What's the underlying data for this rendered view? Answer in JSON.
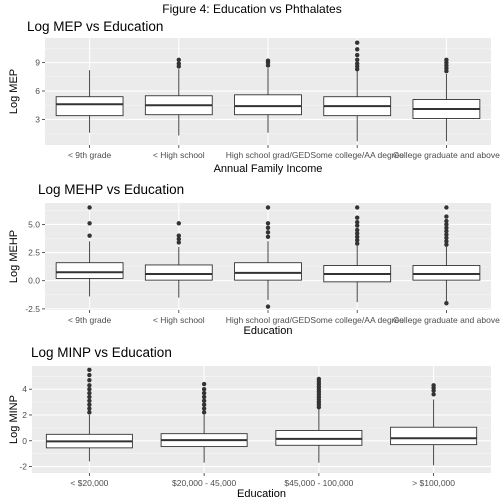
{
  "figure_title": "Figure 4: Education vs Phthalates",
  "chart_data": [
    {
      "type": "box",
      "title": "Log MEP vs Education",
      "xlabel": "Annual Family Income",
      "ylabel": "Log MEP",
      "ylim": [
        0.3,
        11.6
      ],
      "yticks": [
        3,
        6,
        9
      ],
      "ytick_labels": [
        "3",
        "6",
        "9"
      ],
      "grid": true,
      "categories": [
        "< 9th grade",
        "< High school",
        "High school grad/GED",
        "Some college/AA degree",
        "College graduate and above"
      ],
      "boxes": [
        {
          "whisker_low": 1.6,
          "q1": 3.4,
          "median": 4.6,
          "q3": 5.4,
          "whisker_high": 8.2,
          "outliers": []
        },
        {
          "whisker_low": 1.3,
          "q1": 3.5,
          "median": 4.5,
          "q3": 5.5,
          "whisker_high": 8.3,
          "outliers": [
            8.6,
            8.9,
            9.3
          ]
        },
        {
          "whisker_low": 1.6,
          "q1": 3.5,
          "median": 4.4,
          "q3": 5.6,
          "whisker_high": 8.4,
          "outliers": [
            8.7,
            9.0,
            9.2
          ]
        },
        {
          "whisker_low": 0.7,
          "q1": 3.4,
          "median": 4.4,
          "q3": 5.4,
          "whisker_high": 8.1,
          "outliers": [
            8.3,
            8.6,
            8.9,
            9.3,
            9.8,
            10.4,
            11.1
          ]
        },
        {
          "whisker_low": 0.7,
          "q1": 3.1,
          "median": 4.1,
          "q3": 5.1,
          "whisker_high": 7.8,
          "outliers": [
            8.1,
            8.4,
            8.7,
            9.0,
            9.3
          ]
        }
      ]
    },
    {
      "type": "box",
      "title": "Log MEHP vs Education",
      "xlabel": "Education",
      "ylabel": "Log MEHP",
      "ylim": [
        -2.6,
        6.9
      ],
      "yticks": [
        -2.5,
        0,
        2.5,
        5
      ],
      "ytick_labels": [
        "-2.5",
        "0.0",
        "2.5",
        "5.0"
      ],
      "grid": true,
      "categories": [
        "< 9th grade",
        "< High school",
        "High school grad/GED",
        "Some college/AA degree",
        "College graduate and above"
      ],
      "boxes": [
        {
          "whisker_low": -1.4,
          "q1": 0.2,
          "median": 0.75,
          "q3": 1.6,
          "whisker_high": 3.5,
          "outliers": [
            4.0,
            5.1,
            6.5
          ]
        },
        {
          "whisker_low": -1.5,
          "q1": 0.05,
          "median": 0.6,
          "q3": 1.4,
          "whisker_high": 3.0,
          "outliers": [
            3.4,
            3.7,
            4.0,
            5.1
          ]
        },
        {
          "whisker_low": -1.7,
          "q1": 0.05,
          "median": 0.7,
          "q3": 1.6,
          "whisker_high": 3.5,
          "outliers": [
            -2.3,
            3.9,
            4.3,
            4.7,
            5.1,
            6.5
          ]
        },
        {
          "whisker_low": -1.9,
          "q1": -0.1,
          "median": 0.6,
          "q3": 1.35,
          "whisker_high": 3.1,
          "outliers": [
            3.3,
            3.6,
            3.9,
            4.2,
            4.5,
            4.9,
            5.2,
            5.6,
            6.5
          ]
        },
        {
          "whisker_low": -1.8,
          "q1": 0.05,
          "median": 0.6,
          "q3": 1.35,
          "whisker_high": 3.0,
          "outliers": [
            -2.0,
            3.2,
            3.5,
            3.8,
            4.1,
            4.4,
            4.7,
            5.0,
            5.3,
            5.7,
            6.5
          ]
        }
      ]
    },
    {
      "type": "box",
      "title": "Log MINP vs Education",
      "xlabel": "Education",
      "ylabel": "Log MINP",
      "ylim": [
        -2.5,
        5.8
      ],
      "yticks": [
        -2,
        0,
        2,
        4
      ],
      "ytick_labels": [
        "-2",
        "0",
        "2",
        "4"
      ],
      "grid": true,
      "categories": [
        "< $20,000",
        "$20,000 - 45,000",
        "$45,000 - 100,000",
        "> $100,000"
      ],
      "boxes": [
        {
          "whisker_low": -1.6,
          "q1": -0.55,
          "median": -0.05,
          "q3": 0.5,
          "whisker_high": 2.0,
          "outliers": [
            2.2,
            2.5,
            2.8,
            3.1,
            3.4,
            3.7,
            4.0,
            4.3,
            4.7,
            5.1,
            5.5
          ]
        },
        {
          "whisker_low": -1.7,
          "q1": -0.45,
          "median": 0.05,
          "q3": 0.55,
          "whisker_high": 2.0,
          "outliers": [
            2.2,
            2.5,
            2.8,
            3.1,
            3.4,
            3.7,
            4.0,
            4.4
          ]
        },
        {
          "whisker_low": -1.7,
          "q1": -0.35,
          "median": 0.15,
          "q3": 0.8,
          "whisker_high": 2.5,
          "outliers": [
            2.6,
            2.8,
            3.0,
            3.2,
            3.4,
            3.6,
            3.8,
            4.0,
            4.2,
            4.4,
            4.6,
            4.8
          ]
        },
        {
          "whisker_low": -1.9,
          "q1": -0.3,
          "median": 0.2,
          "q3": 1.05,
          "whisker_high": 3.2,
          "outliers": [
            3.6,
            3.9,
            4.1,
            4.3
          ]
        }
      ]
    }
  ]
}
